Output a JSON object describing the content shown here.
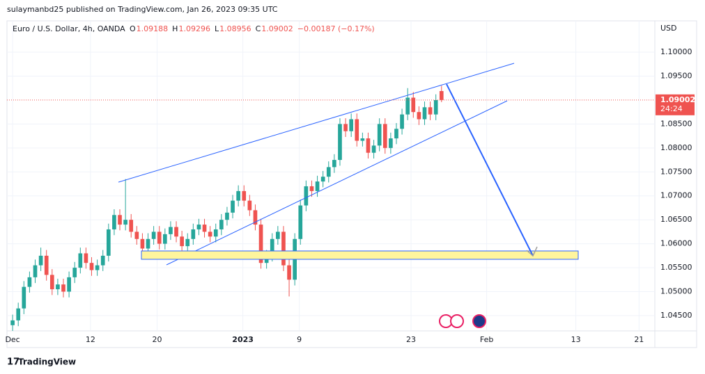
{
  "chart_data": {
    "type": "candlestick",
    "publisher_note": "sulaymanbd25 published on TradingView.com, Jan 26, 2023 09:35 UTC",
    "symbol": "Euro / U.S. Dollar, 4h, OANDA",
    "ohlc_labels": [
      "O",
      "H",
      "L",
      "C"
    ],
    "change_label": "−0.00187 (−0.17%)",
    "currency": "USD",
    "countdown": "24:24",
    "brand": "TradingView",
    "up_color": "#26a69a",
    "down_color": "#ef5350",
    "grid": true,
    "xlim": [
      -0.5,
      56.9
    ],
    "ylim": [
      1.04195,
      1.10654
    ],
    "xticks": [
      {
        "value": 0,
        "label": "Dec"
      },
      {
        "value": 6.9,
        "label": "12"
      },
      {
        "value": 12.8,
        "label": "20"
      },
      {
        "value": 20.4,
        "label": "2023"
      },
      {
        "value": 25.4,
        "label": "9"
      },
      {
        "value": 35.3,
        "label": "23"
      },
      {
        "value": 42.0,
        "label": "Feb"
      },
      {
        "value": 49.9,
        "label": "13"
      },
      {
        "value": 55.5,
        "label": "21"
      }
    ],
    "yticks": [
      {
        "value": 1.045,
        "label": "1.04500"
      },
      {
        "value": 1.05,
        "label": "1.05000"
      },
      {
        "value": 1.055,
        "label": "1.05500"
      },
      {
        "value": 1.06,
        "label": "1.06000"
      },
      {
        "value": 1.065,
        "label": "1.06500"
      },
      {
        "value": 1.07,
        "label": "1.07000"
      },
      {
        "value": 1.075,
        "label": "1.07500"
      },
      {
        "value": 1.08,
        "label": "1.08000"
      },
      {
        "value": 1.085,
        "label": "1.08500"
      },
      {
        "value": 1.095,
        "label": "1.09500"
      },
      {
        "value": 1.1,
        "label": "1.10000"
      }
    ],
    "x": [
      0,
      0.5,
      1,
      1.5,
      2,
      2.5,
      3,
      3.5,
      4,
      4.5,
      5,
      5.5,
      6,
      6.5,
      7,
      7.5,
      8,
      8.5,
      9,
      9.5,
      10,
      10.5,
      11,
      11.5,
      12,
      12.5,
      13,
      13.5,
      14,
      14.5,
      15,
      15.5,
      16,
      16.5,
      17,
      17.5,
      18,
      18.5,
      19,
      19.5,
      20,
      20.5,
      21,
      21.5,
      22,
      22.5,
      23,
      23.5,
      24,
      24.5,
      25,
      25.5,
      26,
      26.5,
      27,
      27.5,
      28,
      28.5,
      29,
      29.5,
      30,
      30.5,
      31,
      31.5,
      32,
      32.5,
      33,
      33.5,
      34,
      34.5,
      35,
      35.5,
      36,
      36.5,
      37,
      37.5,
      38
    ],
    "open": [
      1.043,
      1.044,
      1.0465,
      1.051,
      1.053,
      1.0555,
      1.0575,
      1.0535,
      1.0505,
      1.0515,
      1.05,
      1.053,
      1.055,
      1.058,
      1.056,
      1.0545,
      1.0555,
      1.0575,
      1.063,
      1.066,
      1.064,
      1.065,
      1.0625,
      1.061,
      1.059,
      1.061,
      1.0625,
      1.06,
      1.062,
      1.0635,
      1.0615,
      1.0595,
      1.061,
      1.063,
      1.064,
      1.0625,
      1.0615,
      1.063,
      1.065,
      1.0665,
      1.069,
      1.071,
      1.069,
      1.067,
      1.064,
      1.056,
      1.0575,
      1.061,
      1.0625,
      1.0555,
      1.0525,
      1.061,
      1.068,
      1.072,
      1.071,
      1.073,
      1.074,
      1.076,
      1.0775,
      1.085,
      1.0835,
      1.086,
      1.0815,
      1.082,
      1.079,
      1.0805,
      1.085,
      1.08,
      1.082,
      1.084,
      1.087,
      1.0905,
      1.0875,
      1.086,
      1.0885,
      1.087,
      1.09188
    ],
    "high": [
      1.0452,
      1.0477,
      1.0522,
      1.0542,
      1.0567,
      1.0592,
      1.0587,
      1.0547,
      1.0527,
      1.0527,
      1.0542,
      1.0562,
      1.0592,
      1.0592,
      1.0572,
      1.0567,
      1.0587,
      1.0642,
      1.0672,
      1.0672,
      1.0735,
      1.0662,
      1.0637,
      1.0622,
      1.0622,
      1.0637,
      1.0637,
      1.0632,
      1.0647,
      1.0647,
      1.0627,
      1.0622,
      1.0642,
      1.0652,
      1.0652,
      1.0637,
      1.0642,
      1.0662,
      1.0677,
      1.0702,
      1.0722,
      1.0722,
      1.0702,
      1.0682,
      1.0652,
      1.0587,
      1.0622,
      1.0637,
      1.0637,
      1.0567,
      1.0622,
      1.0692,
      1.0732,
      1.0732,
      1.0742,
      1.0752,
      1.0772,
      1.0787,
      1.0862,
      1.0862,
      1.0872,
      1.0872,
      1.0832,
      1.0832,
      1.0817,
      1.0862,
      1.0862,
      1.0832,
      1.0852,
      1.0882,
      1.0925,
      1.0917,
      1.0887,
      1.0897,
      1.0897,
      1.0912,
      1.09296
    ],
    "low": [
      1.0418,
      1.0428,
      1.0453,
      1.0498,
      1.0518,
      1.0543,
      1.0523,
      1.0493,
      1.0493,
      1.0488,
      1.0488,
      1.0518,
      1.0538,
      1.0548,
      1.0533,
      1.0533,
      1.0543,
      1.0563,
      1.0618,
      1.0628,
      1.0628,
      1.0613,
      1.0598,
      1.0578,
      1.0578,
      1.0598,
      1.0588,
      1.0588,
      1.0608,
      1.0603,
      1.0583,
      1.0583,
      1.0598,
      1.0618,
      1.0613,
      1.0603,
      1.0603,
      1.0618,
      1.0638,
      1.0653,
      1.0678,
      1.0678,
      1.0658,
      1.0628,
      1.0548,
      1.0548,
      1.0563,
      1.0598,
      1.0543,
      1.049,
      1.0513,
      1.0598,
      1.0668,
      1.0698,
      1.0698,
      1.0718,
      1.0728,
      1.0748,
      1.0763,
      1.0823,
      1.0823,
      1.0803,
      1.0803,
      1.0778,
      1.0778,
      1.0793,
      1.0788,
      1.0788,
      1.0808,
      1.0828,
      1.0858,
      1.0863,
      1.0848,
      1.0848,
      1.0858,
      1.0858,
      1.08956
    ],
    "close": [
      1.044,
      1.0465,
      1.051,
      1.053,
      1.0555,
      1.0575,
      1.0535,
      1.0505,
      1.0515,
      1.05,
      1.053,
      1.055,
      1.058,
      1.056,
      1.0545,
      1.0555,
      1.0575,
      1.063,
      1.066,
      1.064,
      1.065,
      1.0625,
      1.061,
      1.059,
      1.061,
      1.0625,
      1.06,
      1.062,
      1.0635,
      1.0615,
      1.0595,
      1.061,
      1.063,
      1.064,
      1.0625,
      1.0615,
      1.063,
      1.065,
      1.0665,
      1.069,
      1.071,
      1.069,
      1.067,
      1.064,
      1.056,
      1.0575,
      1.061,
      1.0625,
      1.0555,
      1.0525,
      1.061,
      1.068,
      1.072,
      1.071,
      1.073,
      1.074,
      1.076,
      1.0775,
      1.085,
      1.0835,
      1.086,
      1.0815,
      1.082,
      1.079,
      1.0805,
      1.085,
      1.08,
      1.082,
      1.084,
      1.087,
      1.0905,
      1.0875,
      1.086,
      1.0885,
      1.087,
      1.09,
      1.09002
    ]
  }
}
